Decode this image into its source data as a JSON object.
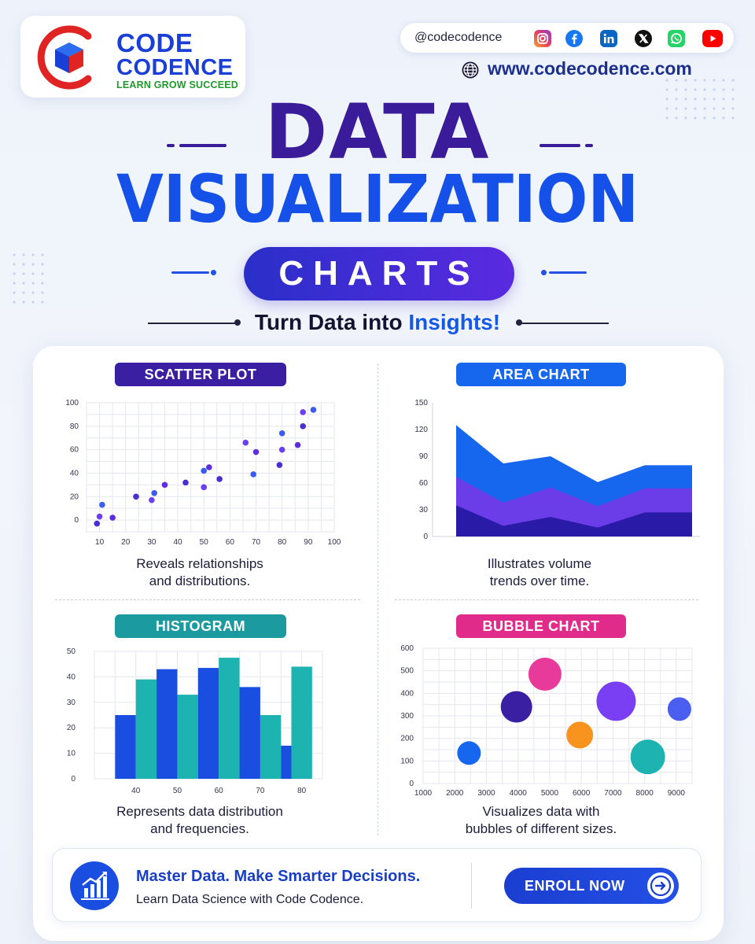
{
  "brand": {
    "line1": "CODE",
    "line2": "CODENCE",
    "tagline": "LEARN GROW SUCCEED",
    "handle": "@codecodence",
    "website": "www.codecodence.com",
    "social_icons": [
      "instagram-icon",
      "facebook-icon",
      "linkedin-icon",
      "x-icon",
      "whatsapp-icon",
      "youtube-icon"
    ],
    "colors": {
      "primary": "#1a3fd6",
      "tagline": "#1f9a2b",
      "red": "#e02424"
    }
  },
  "headline": {
    "line1": "DATA",
    "line2": "VISUALIZATION",
    "pill": "CHARTS",
    "subtitle_plain": "Turn Data into",
    "subtitle_accent": "Insights!"
  },
  "colors": {
    "dark_purple": "#3a1c9a",
    "blue": "#1551e8",
    "scatter_label": "#3b1fa3",
    "area_label": "#1766ee",
    "histogram_label": "#1b9aa0",
    "bubble_label": "#e12b8a"
  },
  "chart_data": [
    {
      "type": "scatter",
      "label": "SCATTER PLOT",
      "caption_line1": "Reveals relationships",
      "caption_line2": "and distributions.",
      "xlim": [
        5,
        100
      ],
      "ylim": [
        0,
        100
      ],
      "x_ticks": [
        10,
        20,
        30,
        40,
        50,
        60,
        70,
        80,
        90,
        100
      ],
      "y_ticks": [
        0,
        20,
        40,
        60,
        80,
        100
      ],
      "points": [
        {
          "x": 9,
          "y": -3
        },
        {
          "x": 10,
          "y": 3
        },
        {
          "x": 11,
          "y": 13
        },
        {
          "x": 15,
          "y": 2
        },
        {
          "x": 24,
          "y": 20
        },
        {
          "x": 30,
          "y": 17
        },
        {
          "x": 31,
          "y": 23
        },
        {
          "x": 35,
          "y": 30
        },
        {
          "x": 43,
          "y": 32
        },
        {
          "x": 50,
          "y": 28
        },
        {
          "x": 50,
          "y": 42
        },
        {
          "x": 52,
          "y": 45
        },
        {
          "x": 56,
          "y": 35
        },
        {
          "x": 66,
          "y": 66
        },
        {
          "x": 69,
          "y": 39
        },
        {
          "x": 70,
          "y": 58
        },
        {
          "x": 79,
          "y": 47
        },
        {
          "x": 80,
          "y": 60
        },
        {
          "x": 80,
          "y": 74
        },
        {
          "x": 86,
          "y": 64
        },
        {
          "x": 88,
          "y": 80
        },
        {
          "x": 88,
          "y": 92
        },
        {
          "x": 92,
          "y": 94
        }
      ]
    },
    {
      "type": "area",
      "label": "AREA CHART",
      "caption_line1": "Illustrates volume",
      "caption_line2": "trends over time.",
      "ylim": [
        0,
        150
      ],
      "y_ticks": [
        0,
        30,
        60,
        90,
        120,
        150
      ],
      "x_count": 6,
      "series": [
        {
          "values": [
            35,
            12,
            22,
            10,
            27,
            27
          ],
          "color": "#2a1aa8"
        },
        {
          "values": [
            67,
            38,
            55,
            34,
            54,
            54
          ],
          "color": "#6b3de8"
        },
        {
          "values": [
            125,
            82,
            90,
            61,
            80,
            80
          ],
          "color": "#1766ee"
        }
      ]
    },
    {
      "type": "bar",
      "label": "HISTOGRAM",
      "caption_line1": "Represents data distribution",
      "caption_line2": "and frequencies.",
      "ylim": [
        0,
        50
      ],
      "y_ticks": [
        0,
        10,
        20,
        30,
        40,
        50
      ],
      "x_ticks": [
        40,
        50,
        60,
        70,
        80
      ],
      "bin_edges": [
        35,
        40,
        45,
        50,
        55,
        60,
        65,
        70,
        75,
        80
      ],
      "values": [
        25,
        39,
        43,
        33,
        43.5,
        47.5,
        36,
        25,
        13
      ],
      "extra_bar": {
        "center": 80,
        "value": 44
      },
      "colors": [
        "#1a4ee0",
        "#1db3b0"
      ]
    },
    {
      "type": "scatter",
      "label": "BUBBLE CHART",
      "caption_line1": "Visualizes data with",
      "caption_line2": "bubbles of different sizes.",
      "xlim": [
        1000,
        9500
      ],
      "ylim": [
        0,
        600
      ],
      "x_ticks": [
        1000,
        2000,
        3000,
        4000,
        5000,
        6000,
        7000,
        8000,
        9000
      ],
      "y_ticks": [
        0,
        100,
        200,
        300,
        400,
        500,
        600
      ],
      "bubbles": [
        {
          "x": 2450,
          "y": 135,
          "size": 15,
          "color": "#1766ee"
        },
        {
          "x": 3950,
          "y": 340,
          "size": 20,
          "color": "#3b1fa3"
        },
        {
          "x": 4850,
          "y": 485,
          "size": 21,
          "color": "#e83a9a"
        },
        {
          "x": 5950,
          "y": 215,
          "size": 17,
          "color": "#f7931e"
        },
        {
          "x": 7100,
          "y": 365,
          "size": 25,
          "color": "#7a3ff2"
        },
        {
          "x": 8100,
          "y": 118,
          "size": 22,
          "color": "#1db3b0"
        },
        {
          "x": 9100,
          "y": 330,
          "size": 15,
          "color": "#4a5ef0"
        }
      ]
    }
  ],
  "footer": {
    "title": "Master Data. Make Smarter Decisions.",
    "subtitle": "Learn Data Science with Code Codence.",
    "cta": "ENROLL NOW"
  }
}
